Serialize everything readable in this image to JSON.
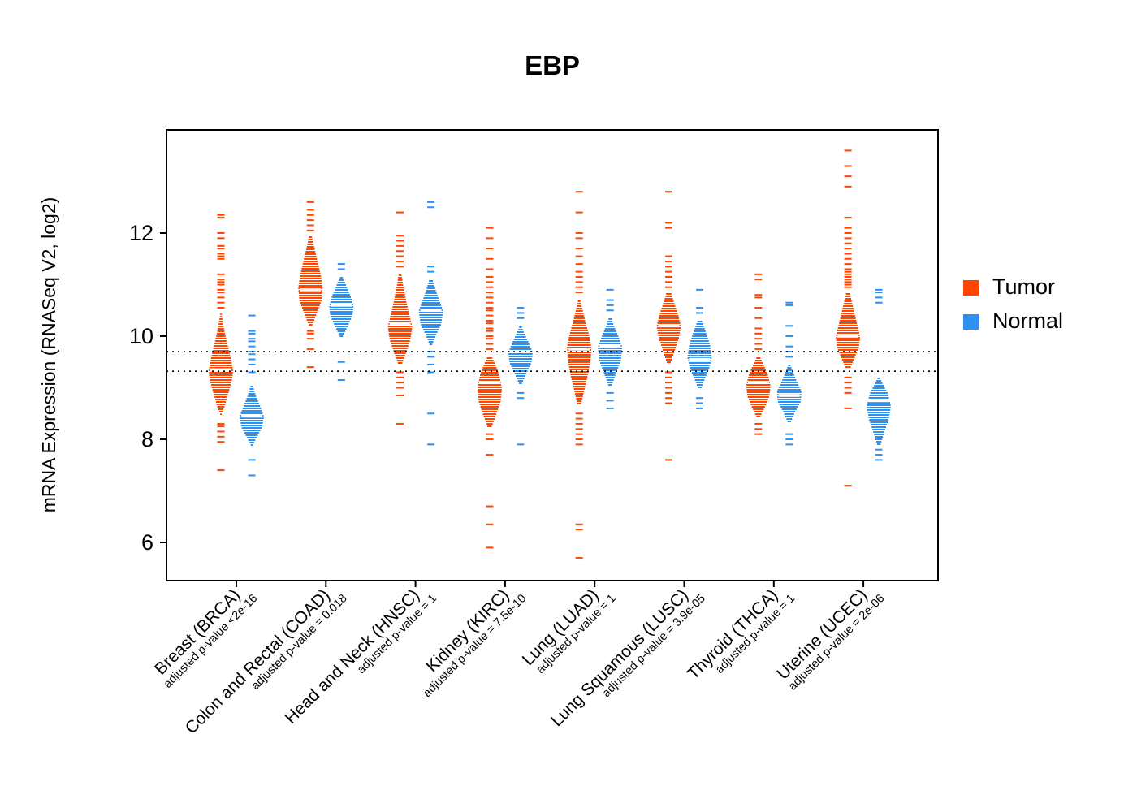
{
  "chart_data": {
    "type": "violin",
    "title": "EBP",
    "ylabel": "mRNA Expression (RNASeq V2, log2)",
    "yticks": [
      6,
      8,
      10,
      12
    ],
    "ylim": [
      5.2,
      14.0
    ],
    "grid": false,
    "legend_position": "right",
    "reference_lines": [
      9.7,
      9.32
    ],
    "colors": {
      "tumor": "#FF4500",
      "normal": "#2E90F0"
    },
    "legend": [
      {
        "label": "Tumor",
        "color": "#FF4500"
      },
      {
        "label": "Normal",
        "color": "#2E90F0"
      }
    ],
    "groups": [
      {
        "cancer": "Breast (BRCA)",
        "pvalue_label": "adjusted p-value <2e-16",
        "series": [
          {
            "name": "Tumor",
            "color": "#FF4500",
            "median": 9.35,
            "density": [
              [
                8.5,
                0.05
              ],
              [
                8.65,
                0.3
              ],
              [
                8.9,
                0.6
              ],
              [
                9.15,
                0.9
              ],
              [
                9.35,
                1.0
              ],
              [
                9.6,
                0.8
              ],
              [
                9.85,
                0.55
              ],
              [
                10.1,
                0.3
              ],
              [
                10.3,
                0.15
              ],
              [
                10.45,
                0.05
              ]
            ],
            "outliers": [
              7.4,
              7.95,
              8.05,
              8.15,
              8.25,
              8.3,
              10.55,
              10.65,
              10.75,
              10.85,
              10.9,
              11.0,
              11.05,
              11.1,
              11.2,
              11.5,
              11.55,
              11.6,
              11.7,
              11.75,
              11.9,
              12.0,
              12.3,
              12.35
            ]
          },
          {
            "name": "Normal",
            "color": "#2E90F0",
            "median": 8.45,
            "density": [
              [
                7.9,
                0.07
              ],
              [
                8.05,
                0.4
              ],
              [
                8.25,
                0.85
              ],
              [
                8.45,
                1.0
              ],
              [
                8.65,
                0.7
              ],
              [
                8.85,
                0.35
              ],
              [
                9.05,
                0.1
              ]
            ],
            "outliers": [
              7.3,
              7.6,
              9.3,
              9.45,
              9.55,
              9.65,
              9.7,
              9.8,
              9.9,
              9.95,
              10.05,
              10.1,
              10.4
            ]
          }
        ]
      },
      {
        "cancer": "Colon and Rectal (COAD)",
        "pvalue_label": "adjusted p-value = 0.018",
        "series": [
          {
            "name": "Tumor",
            "color": "#FF4500",
            "median": 10.9,
            "density": [
              [
                10.2,
                0.1
              ],
              [
                10.45,
                0.5
              ],
              [
                10.7,
                0.9
              ],
              [
                10.95,
                1.0
              ],
              [
                11.2,
                0.85
              ],
              [
                11.5,
                0.55
              ],
              [
                11.75,
                0.3
              ],
              [
                11.95,
                0.12
              ]
            ],
            "outliers": [
              9.4,
              9.75,
              9.95,
              10.05,
              10.1,
              12.05,
              12.15,
              12.25,
              12.35,
              12.45,
              12.6
            ]
          },
          {
            "name": "Normal",
            "color": "#2E90F0",
            "median": 10.6,
            "density": [
              [
                10.0,
                0.1
              ],
              [
                10.2,
                0.5
              ],
              [
                10.4,
                0.9
              ],
              [
                10.6,
                1.0
              ],
              [
                10.8,
                0.75
              ],
              [
                11.0,
                0.4
              ],
              [
                11.15,
                0.12
              ]
            ],
            "outliers": [
              9.15,
              9.5,
              11.3,
              11.4
            ]
          }
        ]
      },
      {
        "cancer": "Head and Neck (HNSC)",
        "pvalue_label": "adjusted p-value = 1",
        "series": [
          {
            "name": "Tumor",
            "color": "#FF4500",
            "median": 10.25,
            "density": [
              [
                9.45,
                0.12
              ],
              [
                9.7,
                0.5
              ],
              [
                9.95,
                0.85
              ],
              [
                10.2,
                1.0
              ],
              [
                10.45,
                0.75
              ],
              [
                10.7,
                0.5
              ],
              [
                10.95,
                0.3
              ],
              [
                11.2,
                0.12
              ]
            ],
            "outliers": [
              8.3,
              8.85,
              9.0,
              9.1,
              9.2,
              9.3,
              11.35,
              11.45,
              11.55,
              11.65,
              11.75,
              11.85,
              11.95,
              12.4
            ]
          },
          {
            "name": "Normal",
            "color": "#2E90F0",
            "median": 10.5,
            "density": [
              [
                9.85,
                0.1
              ],
              [
                10.05,
                0.45
              ],
              [
                10.25,
                0.85
              ],
              [
                10.5,
                1.0
              ],
              [
                10.7,
                0.7
              ],
              [
                10.9,
                0.4
              ],
              [
                11.1,
                0.15
              ]
            ],
            "outliers": [
              7.9,
              8.5,
              9.3,
              9.45,
              9.6,
              9.7,
              11.25,
              11.35,
              12.5,
              12.6
            ]
          }
        ]
      },
      {
        "cancer": "Kidney (KIRC)",
        "pvalue_label": "adjusted p-value = 7.5e-10",
        "series": [
          {
            "name": "Tumor",
            "color": "#FF4500",
            "median": 9.1,
            "density": [
              [
                8.25,
                0.15
              ],
              [
                8.5,
                0.55
              ],
              [
                8.75,
                0.9
              ],
              [
                9.0,
                1.0
              ],
              [
                9.25,
                0.8
              ],
              [
                9.45,
                0.5
              ],
              [
                9.6,
                0.2
              ]
            ],
            "outliers": [
              5.9,
              6.35,
              6.7,
              7.7,
              8.0,
              8.1,
              9.75,
              9.85,
              9.95,
              10.0,
              10.1,
              10.15,
              10.25,
              10.3,
              10.4,
              10.5,
              10.55,
              10.65,
              10.75,
              10.85,
              10.95,
              11.05,
              11.15,
              11.3,
              11.5,
              11.7,
              11.9,
              12.1
            ]
          },
          {
            "name": "Normal",
            "color": "#2E90F0",
            "median": 9.7,
            "density": [
              [
                9.1,
                0.12
              ],
              [
                9.3,
                0.5
              ],
              [
                9.5,
                0.9
              ],
              [
                9.7,
                1.0
              ],
              [
                9.9,
                0.65
              ],
              [
                10.1,
                0.25
              ],
              [
                10.2,
                0.1
              ]
            ],
            "outliers": [
              7.9,
              8.8,
              8.9,
              10.35,
              10.45,
              10.55
            ]
          }
        ]
      },
      {
        "cancer": "Lung (LUAD)",
        "pvalue_label": "adjusted p-value = 1",
        "series": [
          {
            "name": "Tumor",
            "color": "#FF4500",
            "median": 9.75,
            "density": [
              [
                8.7,
                0.15
              ],
              [
                9.0,
                0.45
              ],
              [
                9.3,
                0.75
              ],
              [
                9.6,
                0.95
              ],
              [
                9.8,
                1.0
              ],
              [
                10.05,
                0.8
              ],
              [
                10.3,
                0.5
              ],
              [
                10.55,
                0.25
              ],
              [
                10.7,
                0.1
              ]
            ],
            "outliers": [
              5.7,
              6.25,
              6.35,
              7.9,
              8.0,
              8.1,
              8.2,
              8.3,
              8.4,
              8.5,
              10.85,
              10.95,
              11.05,
              11.15,
              11.25,
              11.4,
              11.55,
              11.7,
              11.9,
              12.0,
              12.4,
              12.8
            ]
          },
          {
            "name": "Normal",
            "color": "#2E90F0",
            "median": 9.8,
            "density": [
              [
                9.05,
                0.12
              ],
              [
                9.3,
                0.5
              ],
              [
                9.55,
                0.9
              ],
              [
                9.8,
                1.0
              ],
              [
                10.0,
                0.7
              ],
              [
                10.2,
                0.35
              ],
              [
                10.35,
                0.12
              ]
            ],
            "outliers": [
              8.6,
              8.75,
              8.9,
              10.5,
              10.6,
              10.7,
              10.9
            ]
          }
        ]
      },
      {
        "cancer": "Lung Squamous (LUSC)",
        "pvalue_label": "adjusted p-value = 3.9e-05",
        "series": [
          {
            "name": "Tumor",
            "color": "#FF4500",
            "median": 10.2,
            "density": [
              [
                9.5,
                0.15
              ],
              [
                9.75,
                0.5
              ],
              [
                10.0,
                0.85
              ],
              [
                10.2,
                1.0
              ],
              [
                10.45,
                0.75
              ],
              [
                10.65,
                0.45
              ],
              [
                10.85,
                0.2
              ]
            ],
            "outliers": [
              7.6,
              8.7,
              8.8,
              8.9,
              9.0,
              9.1,
              9.2,
              9.3,
              10.95,
              11.05,
              11.15,
              11.25,
              11.35,
              11.45,
              11.55,
              12.1,
              12.2,
              12.8
            ]
          },
          {
            "name": "Normal",
            "color": "#2E90F0",
            "median": 9.55,
            "density": [
              [
                9.0,
                0.12
              ],
              [
                9.2,
                0.45
              ],
              [
                9.4,
                0.8
              ],
              [
                9.6,
                1.0
              ],
              [
                9.85,
                0.85
              ],
              [
                10.1,
                0.5
              ],
              [
                10.3,
                0.2
              ]
            ],
            "outliers": [
              8.6,
              8.7,
              8.8,
              10.45,
              10.55,
              10.9
            ]
          }
        ]
      },
      {
        "cancer": "Thyroid (THCA)",
        "pvalue_label": "adjusted p-value = 1",
        "series": [
          {
            "name": "Tumor",
            "color": "#FF4500",
            "median": 9.1,
            "density": [
              [
                8.45,
                0.15
              ],
              [
                8.65,
                0.55
              ],
              [
                8.85,
                0.9
              ],
              [
                9.05,
                1.0
              ],
              [
                9.25,
                0.8
              ],
              [
                9.45,
                0.45
              ],
              [
                9.6,
                0.15
              ]
            ],
            "outliers": [
              8.1,
              8.2,
              8.3,
              9.75,
              9.85,
              9.95,
              10.05,
              10.15,
              10.35,
              10.55,
              10.75,
              10.8,
              11.1,
              11.2
            ]
          },
          {
            "name": "Normal",
            "color": "#2E90F0",
            "median": 8.85,
            "density": [
              [
                8.35,
                0.12
              ],
              [
                8.55,
                0.5
              ],
              [
                8.75,
                0.95
              ],
              [
                8.95,
                1.0
              ],
              [
                9.15,
                0.6
              ],
              [
                9.35,
                0.25
              ],
              [
                9.45,
                0.1
              ]
            ],
            "outliers": [
              7.9,
              8.0,
              8.1,
              9.6,
              9.7,
              9.8,
              10.0,
              10.2,
              10.6,
              10.65
            ]
          }
        ]
      },
      {
        "cancer": "Uterine (UCEC)",
        "pvalue_label": "adjusted p-value = 2e-06",
        "series": [
          {
            "name": "Tumor",
            "color": "#FF4500",
            "median": 10.0,
            "density": [
              [
                9.4,
                0.2
              ],
              [
                9.6,
                0.55
              ],
              [
                9.8,
                0.9
              ],
              [
                10.0,
                1.0
              ],
              [
                10.2,
                0.8
              ],
              [
                10.45,
                0.55
              ],
              [
                10.65,
                0.35
              ],
              [
                10.85,
                0.15
              ]
            ],
            "outliers": [
              7.1,
              8.6,
              8.9,
              9.0,
              9.1,
              9.2,
              10.95,
              11.0,
              11.05,
              11.1,
              11.15,
              11.2,
              11.25,
              11.3,
              11.4,
              11.5,
              11.6,
              11.7,
              11.8,
              11.9,
              12.0,
              12.1,
              12.3,
              12.9,
              13.1,
              13.3,
              13.6
            ]
          },
          {
            "name": "Normal",
            "color": "#2E90F0",
            "median": 8.75,
            "density": [
              [
                7.9,
                0.12
              ],
              [
                8.15,
                0.45
              ],
              [
                8.4,
                0.8
              ],
              [
                8.65,
                1.0
              ],
              [
                8.9,
                0.75
              ],
              [
                9.1,
                0.3
              ],
              [
                9.2,
                0.1
              ]
            ],
            "outliers": [
              7.6,
              7.7,
              7.8,
              10.65,
              10.75,
              10.85,
              10.9
            ]
          }
        ]
      }
    ]
  }
}
